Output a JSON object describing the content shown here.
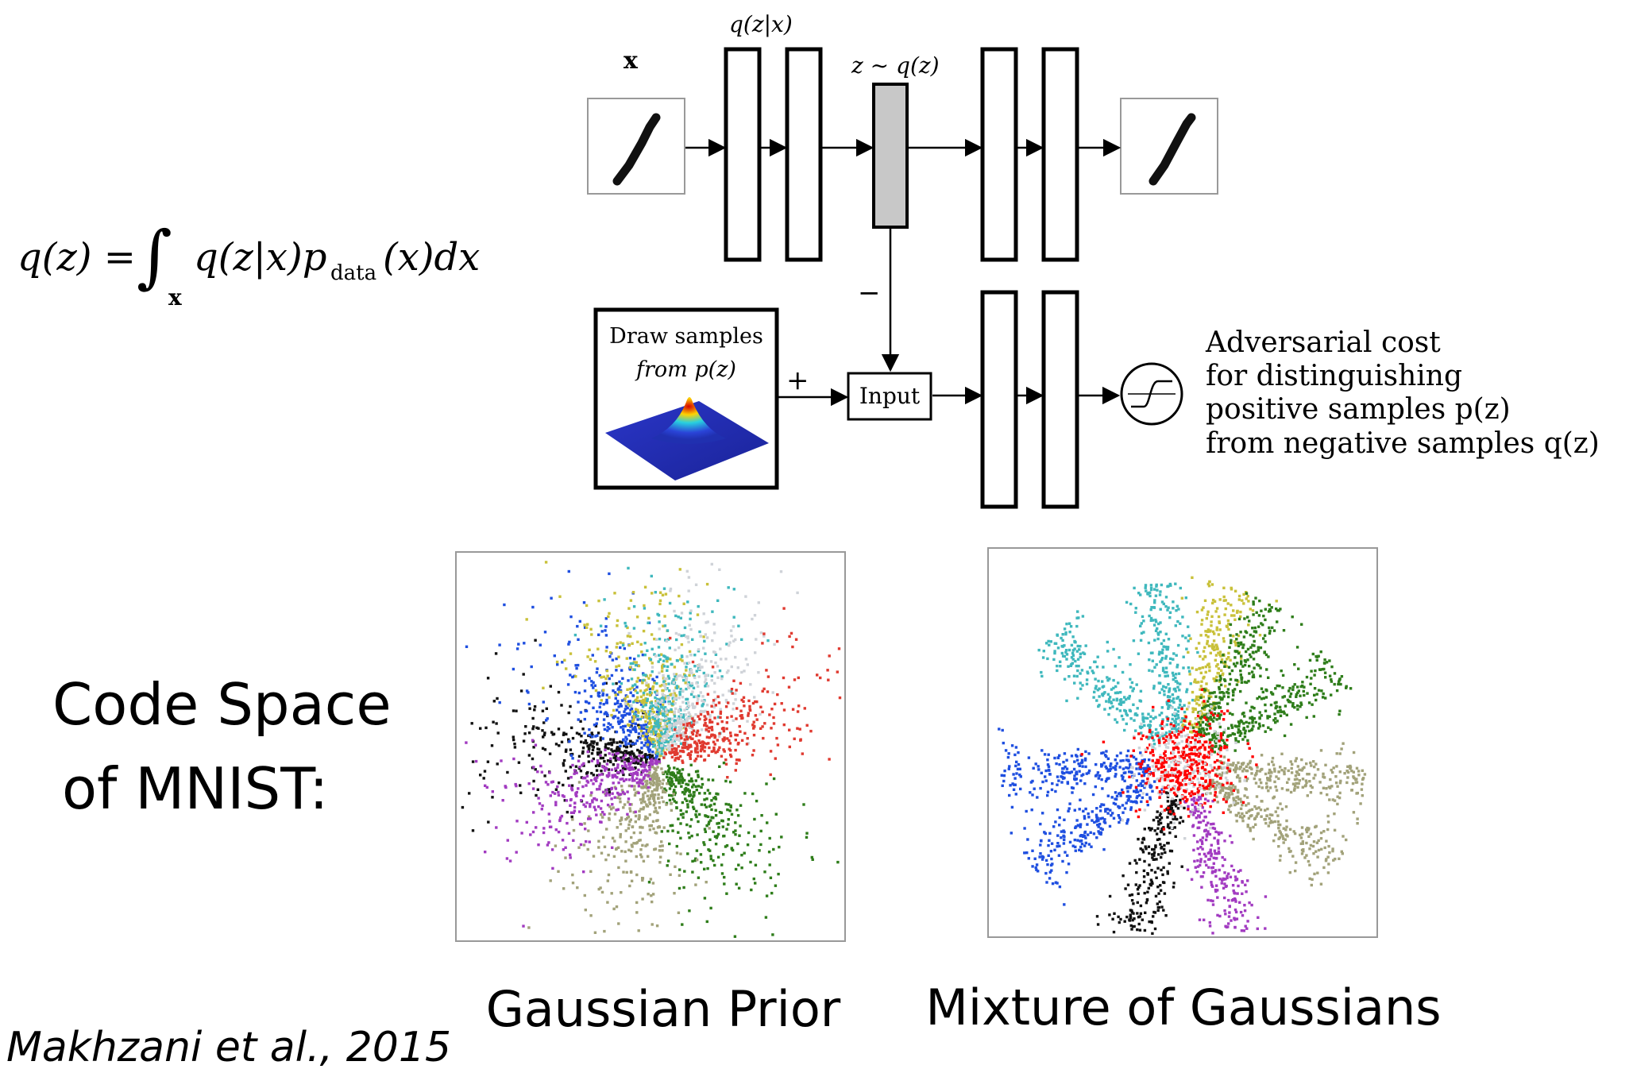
{
  "formula": {
    "lhs": "q(z) =",
    "integral": "∫",
    "integral_sub": "x",
    "rhs_a": "q(z|x)p",
    "rhs_sub": "data",
    "rhs_b": "(x)dx"
  },
  "diagram": {
    "input_label": "x",
    "encoder_label": "q(z|x)",
    "latent_label": "z ∼ q(z)",
    "minus_sign": "−",
    "plus_sign": "+",
    "sampler_line1": "Draw samples",
    "sampler_line2": "from p(z)",
    "input_box": "Input",
    "adversarial_lines": [
      "Adversarial cost",
      "for distinguishing",
      "positive samples p(z)",
      "from negative samples q(z)"
    ]
  },
  "left_caption_line1": "Code Space",
  "left_caption_line2": "of MNIST:",
  "plot_left_caption": "Gaussian Prior",
  "plot_right_caption": "Mixture of Gaussians",
  "citation": "Makhzani et al., 2015",
  "colors": {
    "latent_fill": "#c8c8c8",
    "clusters": [
      "#1f4fe0",
      "#c9c13a",
      "#3fb8bd",
      "#cfd3d8",
      "#e03a30",
      "#111111",
      "#a23bc1",
      "#a2a27a",
      "#2e7d1a",
      "#ff0000"
    ]
  }
}
